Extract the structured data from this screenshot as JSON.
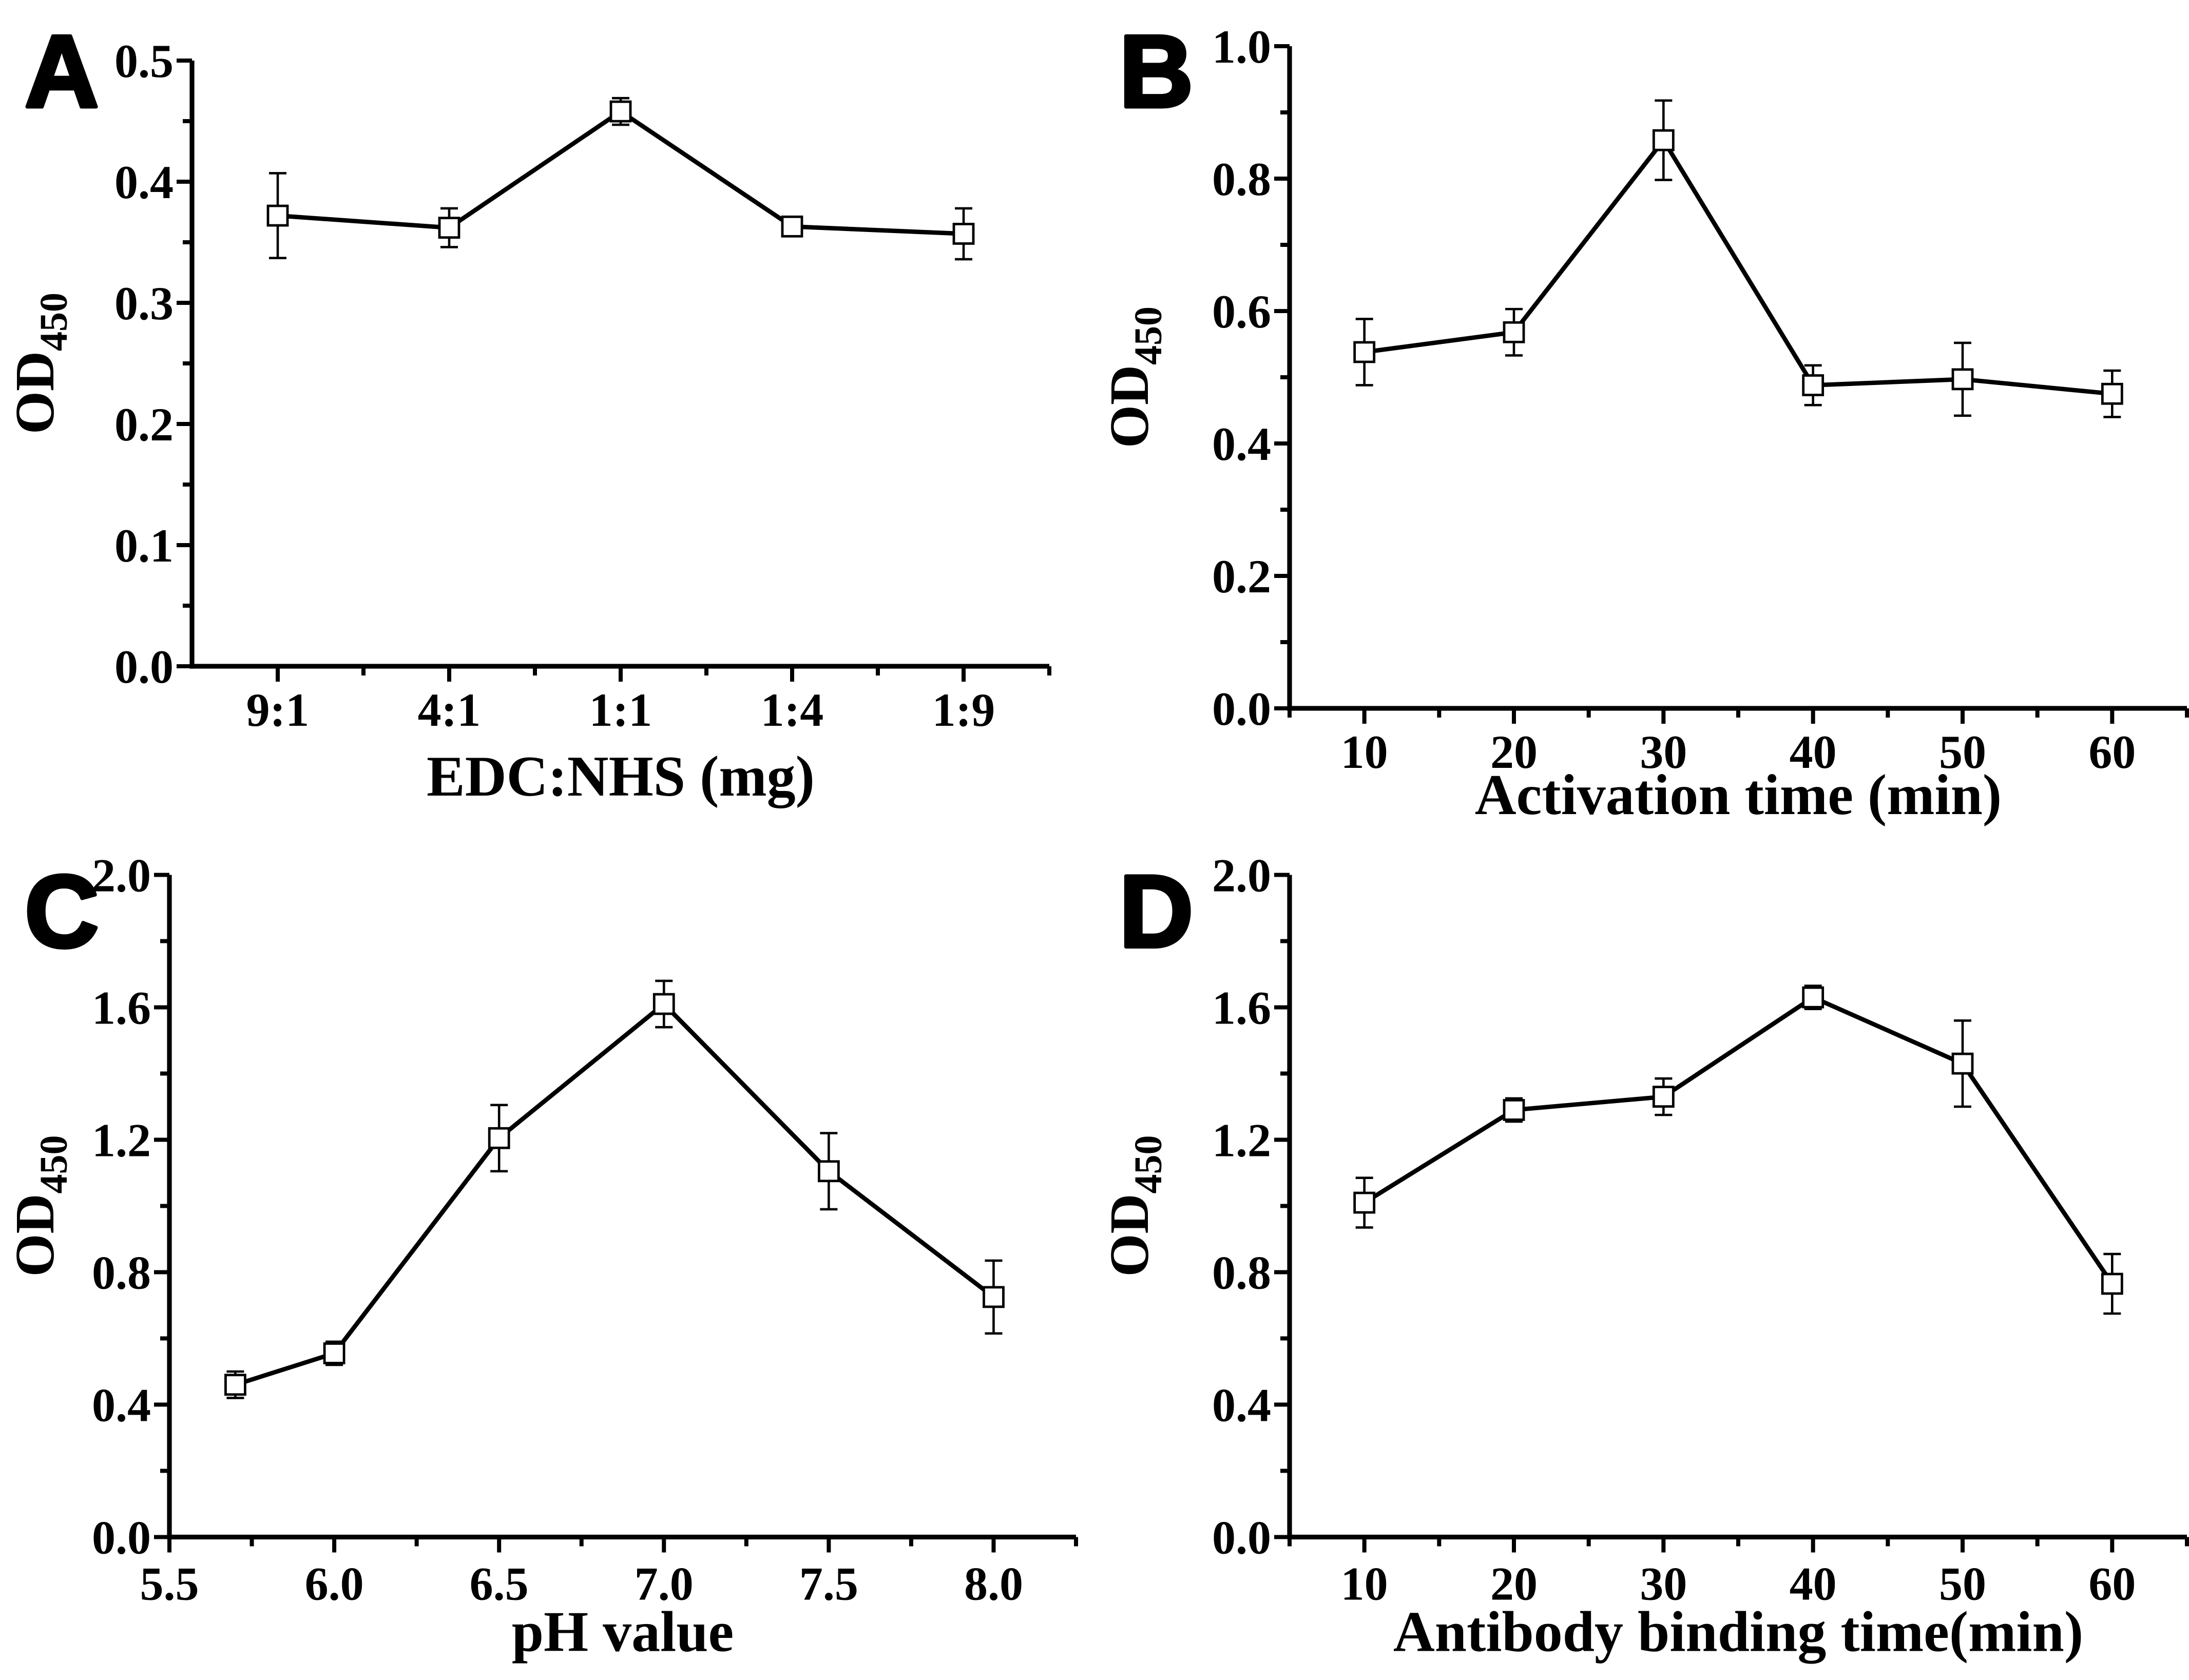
{
  "figure": {
    "background_color": "#ffffff",
    "ink_color": "#000000",
    "marker_style": "open-square",
    "marker_fill": "#ffffff"
  },
  "chart_data": [
    {
      "panel_label": "A",
      "type": "line",
      "x_type": "category",
      "categories": [
        "9:1",
        "4:1",
        "1:1",
        "1:4",
        "1:9"
      ],
      "values": [
        0.372,
        0.362,
        0.458,
        0.363,
        0.357
      ],
      "errors": [
        0.035,
        0.016,
        0.011,
        0.005,
        0.021
      ],
      "xlabel": "EDC:NHS (mg)",
      "ylabel": "OD",
      "ylabel_sub": "450",
      "ylim": [
        0,
        0.5
      ],
      "y_major_values": [
        0,
        0.1,
        0.2,
        0.3,
        0.4,
        0.5
      ],
      "y_minor_values": [
        0.05,
        0.15,
        0.25,
        0.35,
        0.45
      ],
      "y_tick_labels": [
        "0.0",
        "0.1",
        "0.2",
        "0.3",
        "0.4",
        "0.5"
      ],
      "x_tick_labels": [
        "9:1",
        "4:1",
        "1:1",
        "1:4",
        "1:9"
      ],
      "grid": false,
      "legend": null
    },
    {
      "panel_label": "B",
      "type": "line",
      "x_type": "numeric",
      "x": [
        10,
        20,
        30,
        40,
        50,
        60
      ],
      "values": [
        0.538,
        0.568,
        0.858,
        0.488,
        0.497,
        0.475
      ],
      "errors": [
        0.05,
        0.035,
        0.06,
        0.03,
        0.055,
        0.035
      ],
      "xlabel": "Activation time (min)",
      "ylabel": "OD",
      "ylabel_sub": "450",
      "xlim": [
        5,
        65
      ],
      "x_major_values": [
        10,
        20,
        30,
        40,
        50,
        60
      ],
      "x_minor_values": [
        5,
        15,
        25,
        35,
        45,
        55,
        65
      ],
      "x_tick_labels": [
        "10",
        "20",
        "30",
        "40",
        "50",
        "60"
      ],
      "ylim": [
        0,
        1.0
      ],
      "y_major_values": [
        0,
        0.2,
        0.4,
        0.6,
        0.8,
        1.0
      ],
      "y_minor_values": [
        0.1,
        0.3,
        0.5,
        0.7,
        0.9
      ],
      "y_tick_labels": [
        "0.0",
        "0.2",
        "0.4",
        "0.6",
        "0.8",
        "1.0"
      ],
      "grid": false,
      "legend": null
    },
    {
      "panel_label": "C",
      "type": "line",
      "x_type": "numeric",
      "x": [
        5.7,
        6.0,
        6.5,
        7.0,
        7.5,
        8.0
      ],
      "values": [
        0.46,
        0.555,
        1.205,
        1.61,
        1.105,
        0.725
      ],
      "errors": [
        0.04,
        0.035,
        0.1,
        0.07,
        0.115,
        0.11
      ],
      "xlabel": "pH value",
      "ylabel": "OD",
      "ylabel_sub": "450",
      "xlim": [
        5.5,
        8.25
      ],
      "x_major_values": [
        5.5,
        6.0,
        6.5,
        7.0,
        7.5,
        8.0
      ],
      "x_minor_values": [
        5.75,
        6.25,
        6.75,
        7.25,
        7.75,
        8.25
      ],
      "x_tick_labels": [
        "5.5",
        "6.0",
        "6.5",
        "7.0",
        "7.5",
        "8.0"
      ],
      "ylim": [
        0,
        2.0
      ],
      "y_major_values": [
        0,
        0.4,
        0.8,
        1.2,
        1.6,
        2.0
      ],
      "y_minor_values": [
        0.2,
        0.6,
        1.0,
        1.4,
        1.8
      ],
      "y_tick_labels": [
        "0.0",
        "0.4",
        "0.8",
        "1.2",
        "1.6",
        "2.0"
      ],
      "grid": false,
      "legend": null
    },
    {
      "panel_label": "D",
      "type": "line",
      "x_type": "numeric",
      "x": [
        10,
        20,
        30,
        40,
        50,
        60
      ],
      "values": [
        1.01,
        1.29,
        1.33,
        1.63,
        1.43,
        0.765
      ],
      "errors": [
        0.075,
        0.035,
        0.055,
        0.035,
        0.13,
        0.09
      ],
      "xlabel": "Antibody binding time(min)",
      "ylabel": "OD",
      "ylabel_sub": "450",
      "xlim": [
        5,
        65
      ],
      "x_major_values": [
        10,
        20,
        30,
        40,
        50,
        60
      ],
      "x_minor_values": [
        5,
        15,
        25,
        35,
        45,
        55,
        65
      ],
      "x_tick_labels": [
        "10",
        "20",
        "30",
        "40",
        "50",
        "60"
      ],
      "ylim": [
        0,
        2.0
      ],
      "y_major_values": [
        0,
        0.4,
        0.8,
        1.2,
        1.6,
        2.0
      ],
      "y_minor_values": [
        0.2,
        0.6,
        1.0,
        1.4,
        1.8
      ],
      "y_tick_labels": [
        "0.0",
        "0.4",
        "0.8",
        "1.2",
        "1.6",
        "2.0"
      ],
      "grid": false,
      "legend": null
    }
  ]
}
